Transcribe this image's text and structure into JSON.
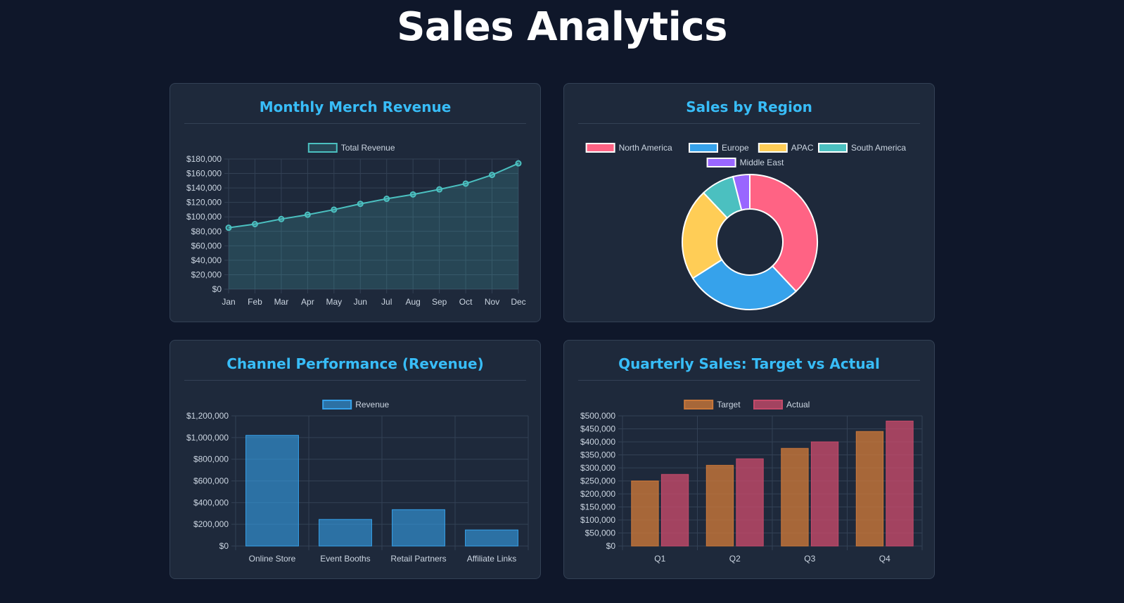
{
  "page": {
    "title": "Sales Analytics"
  },
  "colors": {
    "background": "#0f172a",
    "card": "#1e293b",
    "title": "#38bdf8",
    "teal": "#4bc0c0",
    "blue": "#36a2eb",
    "northAmerica": "#ff6384",
    "europe": "#36a2eb",
    "apac": "#ffcd56",
    "southAmerica": "#4bc0c0",
    "middleEast": "#9966ff",
    "target": "#c9773a",
    "actual": "#c44a6a"
  },
  "chart_data": [
    {
      "type": "line",
      "title": "Monthly Merch Revenue",
      "legend": [
        "Total Revenue"
      ],
      "categories": [
        "Jan",
        "Feb",
        "Mar",
        "Apr",
        "May",
        "Jun",
        "Jul",
        "Aug",
        "Sep",
        "Oct",
        "Nov",
        "Dec"
      ],
      "series": [
        {
          "name": "Total Revenue",
          "values": [
            85000,
            90000,
            97000,
            103000,
            110000,
            118000,
            125000,
            131000,
            138000,
            146000,
            158000,
            174000
          ]
        }
      ],
      "yticks": [
        "$0",
        "$20,000",
        "$40,000",
        "$60,000",
        "$80,000",
        "$100,000",
        "$120,000",
        "$140,000",
        "$160,000",
        "$180,000"
      ],
      "ylim": [
        0,
        180000
      ],
      "fill": true,
      "grid": true,
      "legend_position": "top"
    },
    {
      "type": "pie",
      "title": "Sales by Region",
      "legend": [
        "North America",
        "Europe",
        "APAC",
        "South America",
        "Middle East"
      ],
      "values": [
        38,
        28,
        22,
        8,
        4
      ],
      "donut": true,
      "legend_position": "top"
    },
    {
      "type": "bar",
      "title": "Channel Performance (Revenue)",
      "legend": [
        "Revenue"
      ],
      "categories": [
        "Online Store",
        "Event Booths",
        "Retail Partners",
        "Affiliate Links"
      ],
      "series": [
        {
          "name": "Revenue",
          "values": [
            1020000,
            245000,
            335000,
            148000
          ]
        }
      ],
      "yticks": [
        "$0",
        "$200,000",
        "$400,000",
        "$600,000",
        "$800,000",
        "$1,000,000",
        "$1,200,000"
      ],
      "ylim": [
        0,
        1200000
      ],
      "grid": true,
      "legend_position": "top"
    },
    {
      "type": "bar",
      "title": "Quarterly Sales: Target vs Actual",
      "legend": [
        "Target",
        "Actual"
      ],
      "categories": [
        "Q1",
        "Q2",
        "Q3",
        "Q4"
      ],
      "series": [
        {
          "name": "Target",
          "values": [
            250000,
            310000,
            375000,
            440000
          ]
        },
        {
          "name": "Actual",
          "values": [
            275000,
            335000,
            400000,
            480000
          ]
        }
      ],
      "yticks": [
        "$0",
        "$50,000",
        "$100,000",
        "$150,000",
        "$200,000",
        "$250,000",
        "$300,000",
        "$350,000",
        "$400,000",
        "$450,000",
        "$500,000"
      ],
      "ylim": [
        0,
        500000
      ],
      "grid": true,
      "legend_position": "top"
    }
  ]
}
